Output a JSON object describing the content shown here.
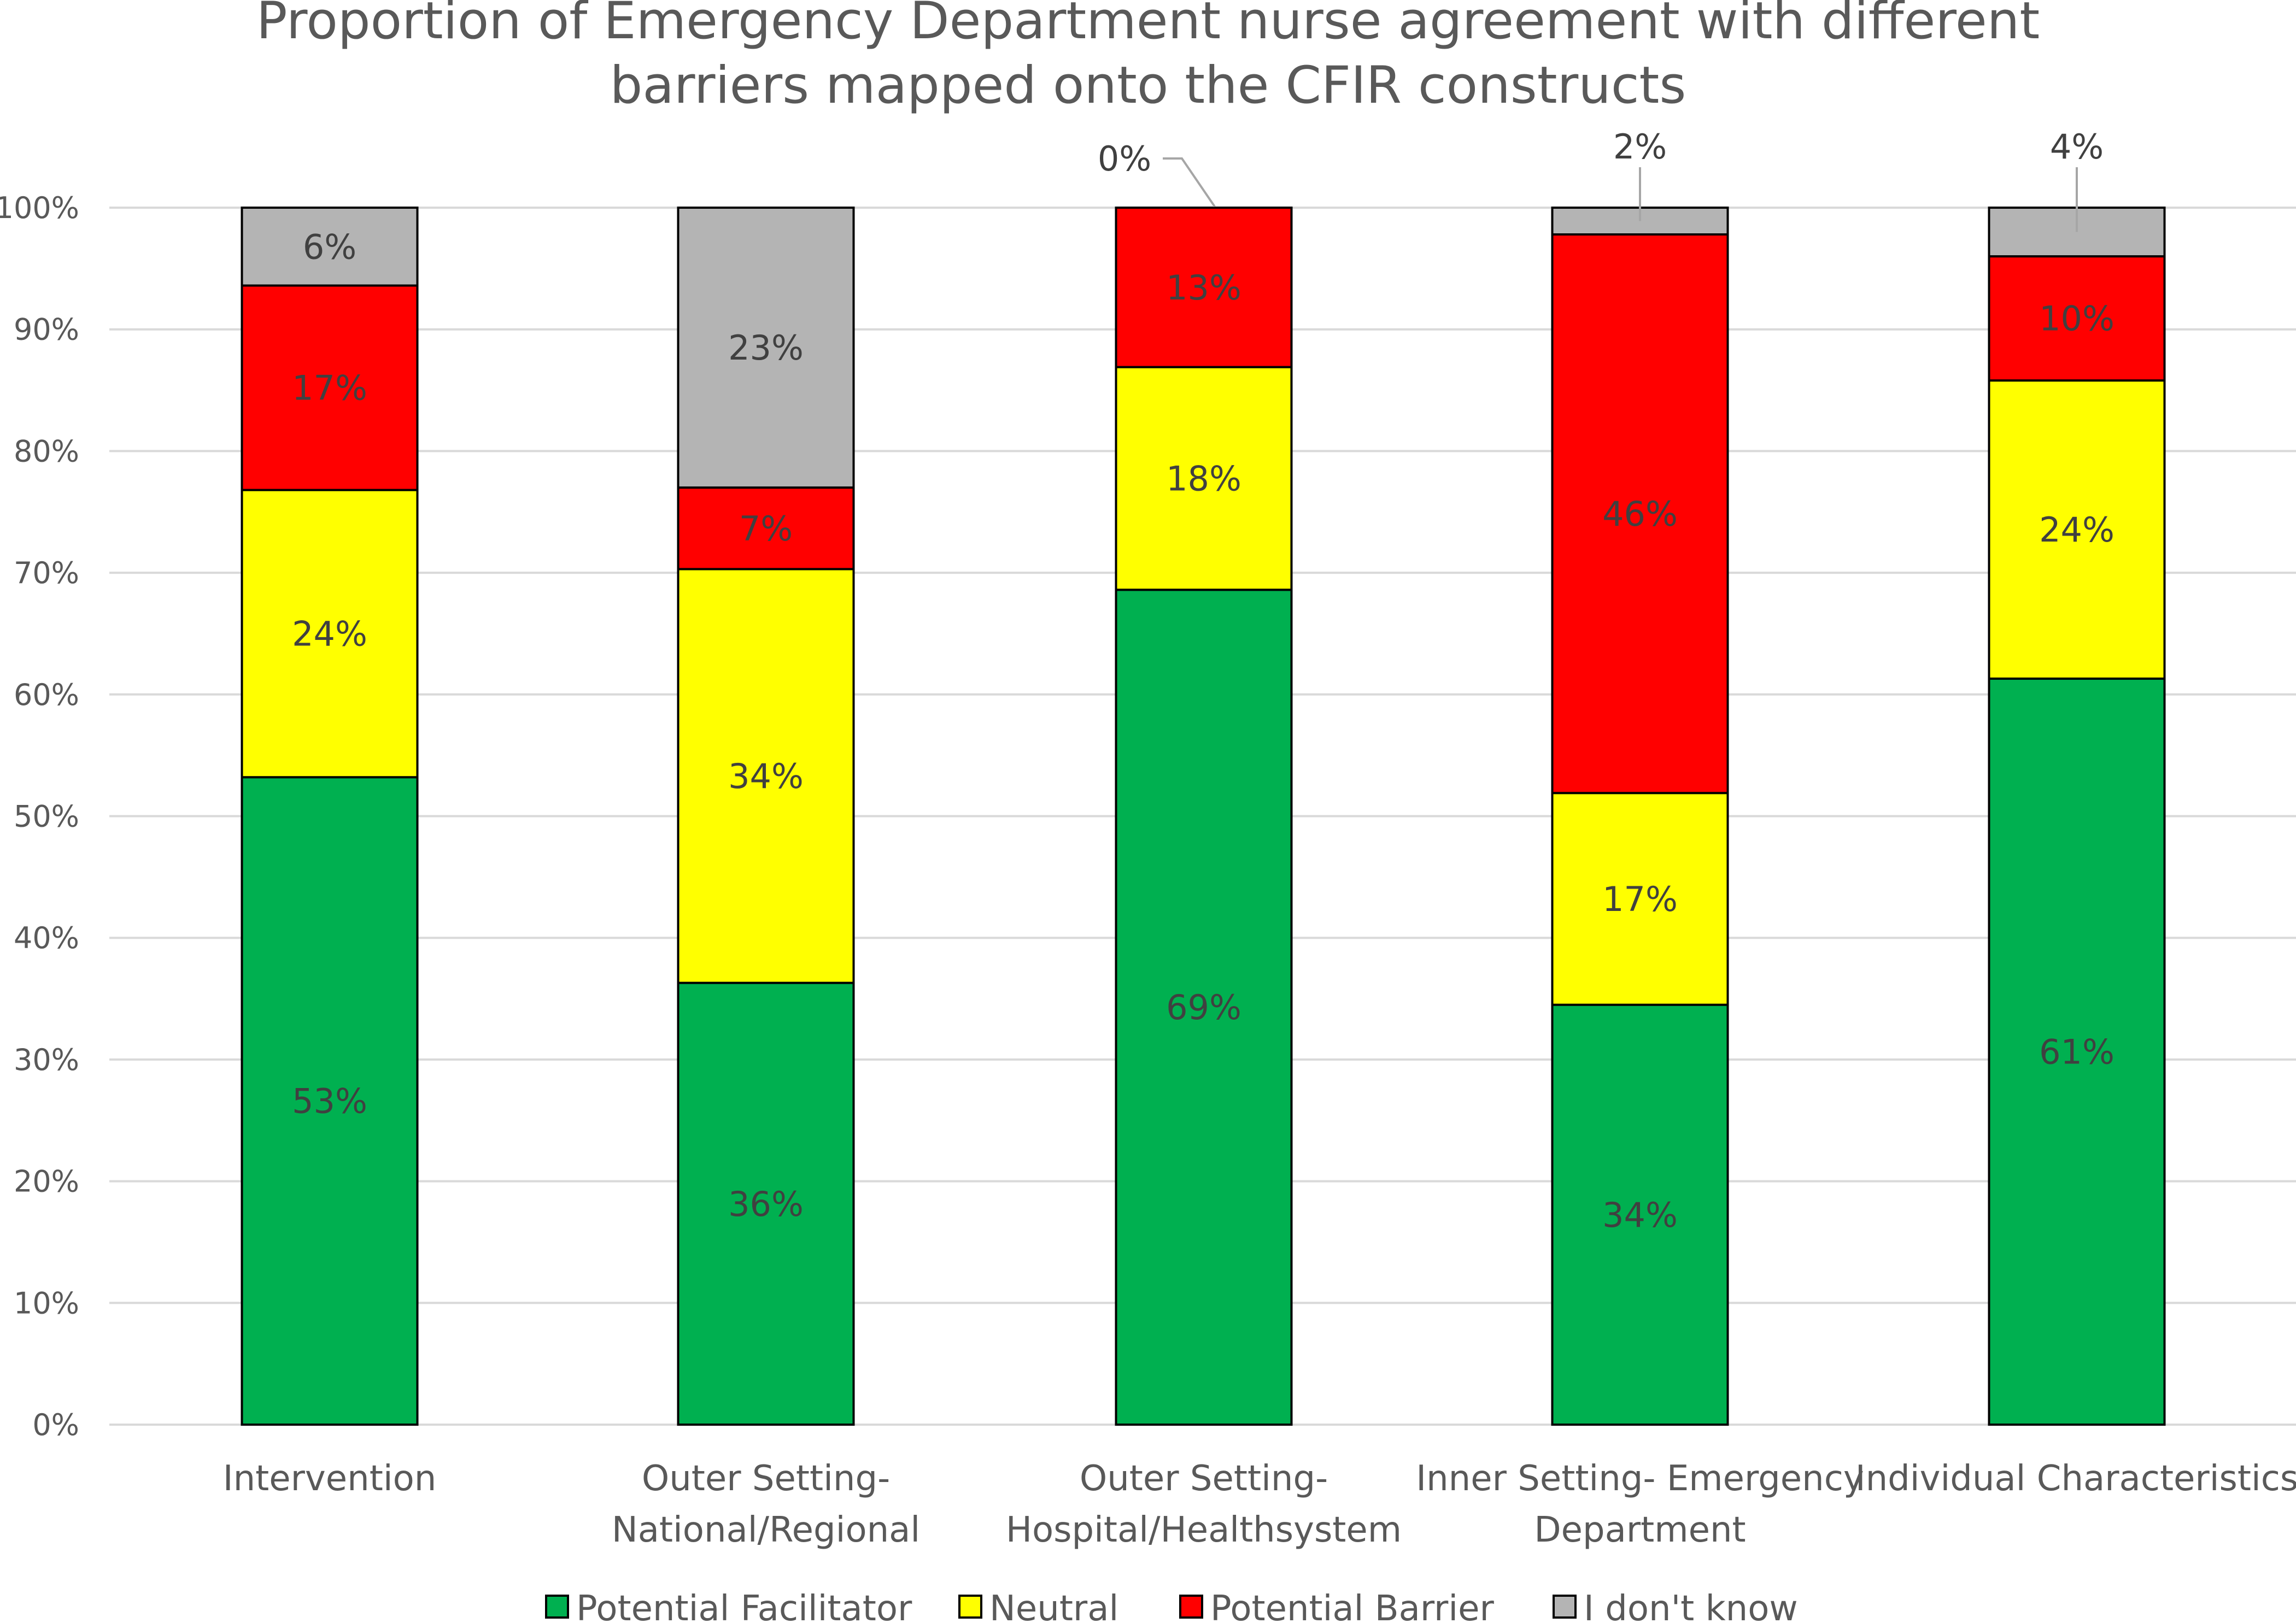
{
  "chart_data": {
    "type": "bar",
    "stacked": true,
    "title_lines": [
      "Proportion of Emergency Department nurse agreement with different",
      "barriers mapped onto the CFIR constructs"
    ],
    "xlabel": "",
    "ylabel": "",
    "ylim": [
      0,
      100
    ],
    "y_ticks": [
      "0%",
      "10%",
      "20%",
      "30%",
      "40%",
      "50%",
      "60%",
      "70%",
      "80%",
      "90%",
      "100%"
    ],
    "grid": true,
    "legend_position": "bottom",
    "categories": [
      [
        "Intervention"
      ],
      [
        "Outer Setting-",
        "National/Regional"
      ],
      [
        "Outer Setting-",
        "Hospital/Healthsystem"
      ],
      [
        "Inner Setting- Emergency",
        "Department"
      ],
      [
        "Individual Characteristics"
      ]
    ],
    "series": [
      {
        "name": "Potential Facilitator",
        "color": "#00B050",
        "values": [
          53.2,
          36.3,
          68.6,
          34.5,
          61.3
        ],
        "labels": [
          "53%",
          "36%",
          "69%",
          "34%",
          "61%"
        ]
      },
      {
        "name": "Neutral",
        "color": "#FFFF00",
        "values": [
          23.6,
          34.0,
          18.3,
          17.4,
          24.5
        ],
        "labels": [
          "24%",
          "34%",
          "18%",
          "17%",
          "24%"
        ]
      },
      {
        "name": "Potential Barrier",
        "color": "#FF0000",
        "values": [
          16.8,
          6.7,
          13.1,
          45.9,
          10.2
        ],
        "labels": [
          "17%",
          "7%",
          "13%",
          "46%",
          "10%"
        ]
      },
      {
        "name": "I don't know",
        "color": "#B4B4B4",
        "values": [
          6.4,
          23.0,
          0.0,
          2.2,
          4.0
        ],
        "labels": [
          "6%",
          "23%",
          "0%",
          "2%",
          "4%"
        ]
      }
    ]
  }
}
